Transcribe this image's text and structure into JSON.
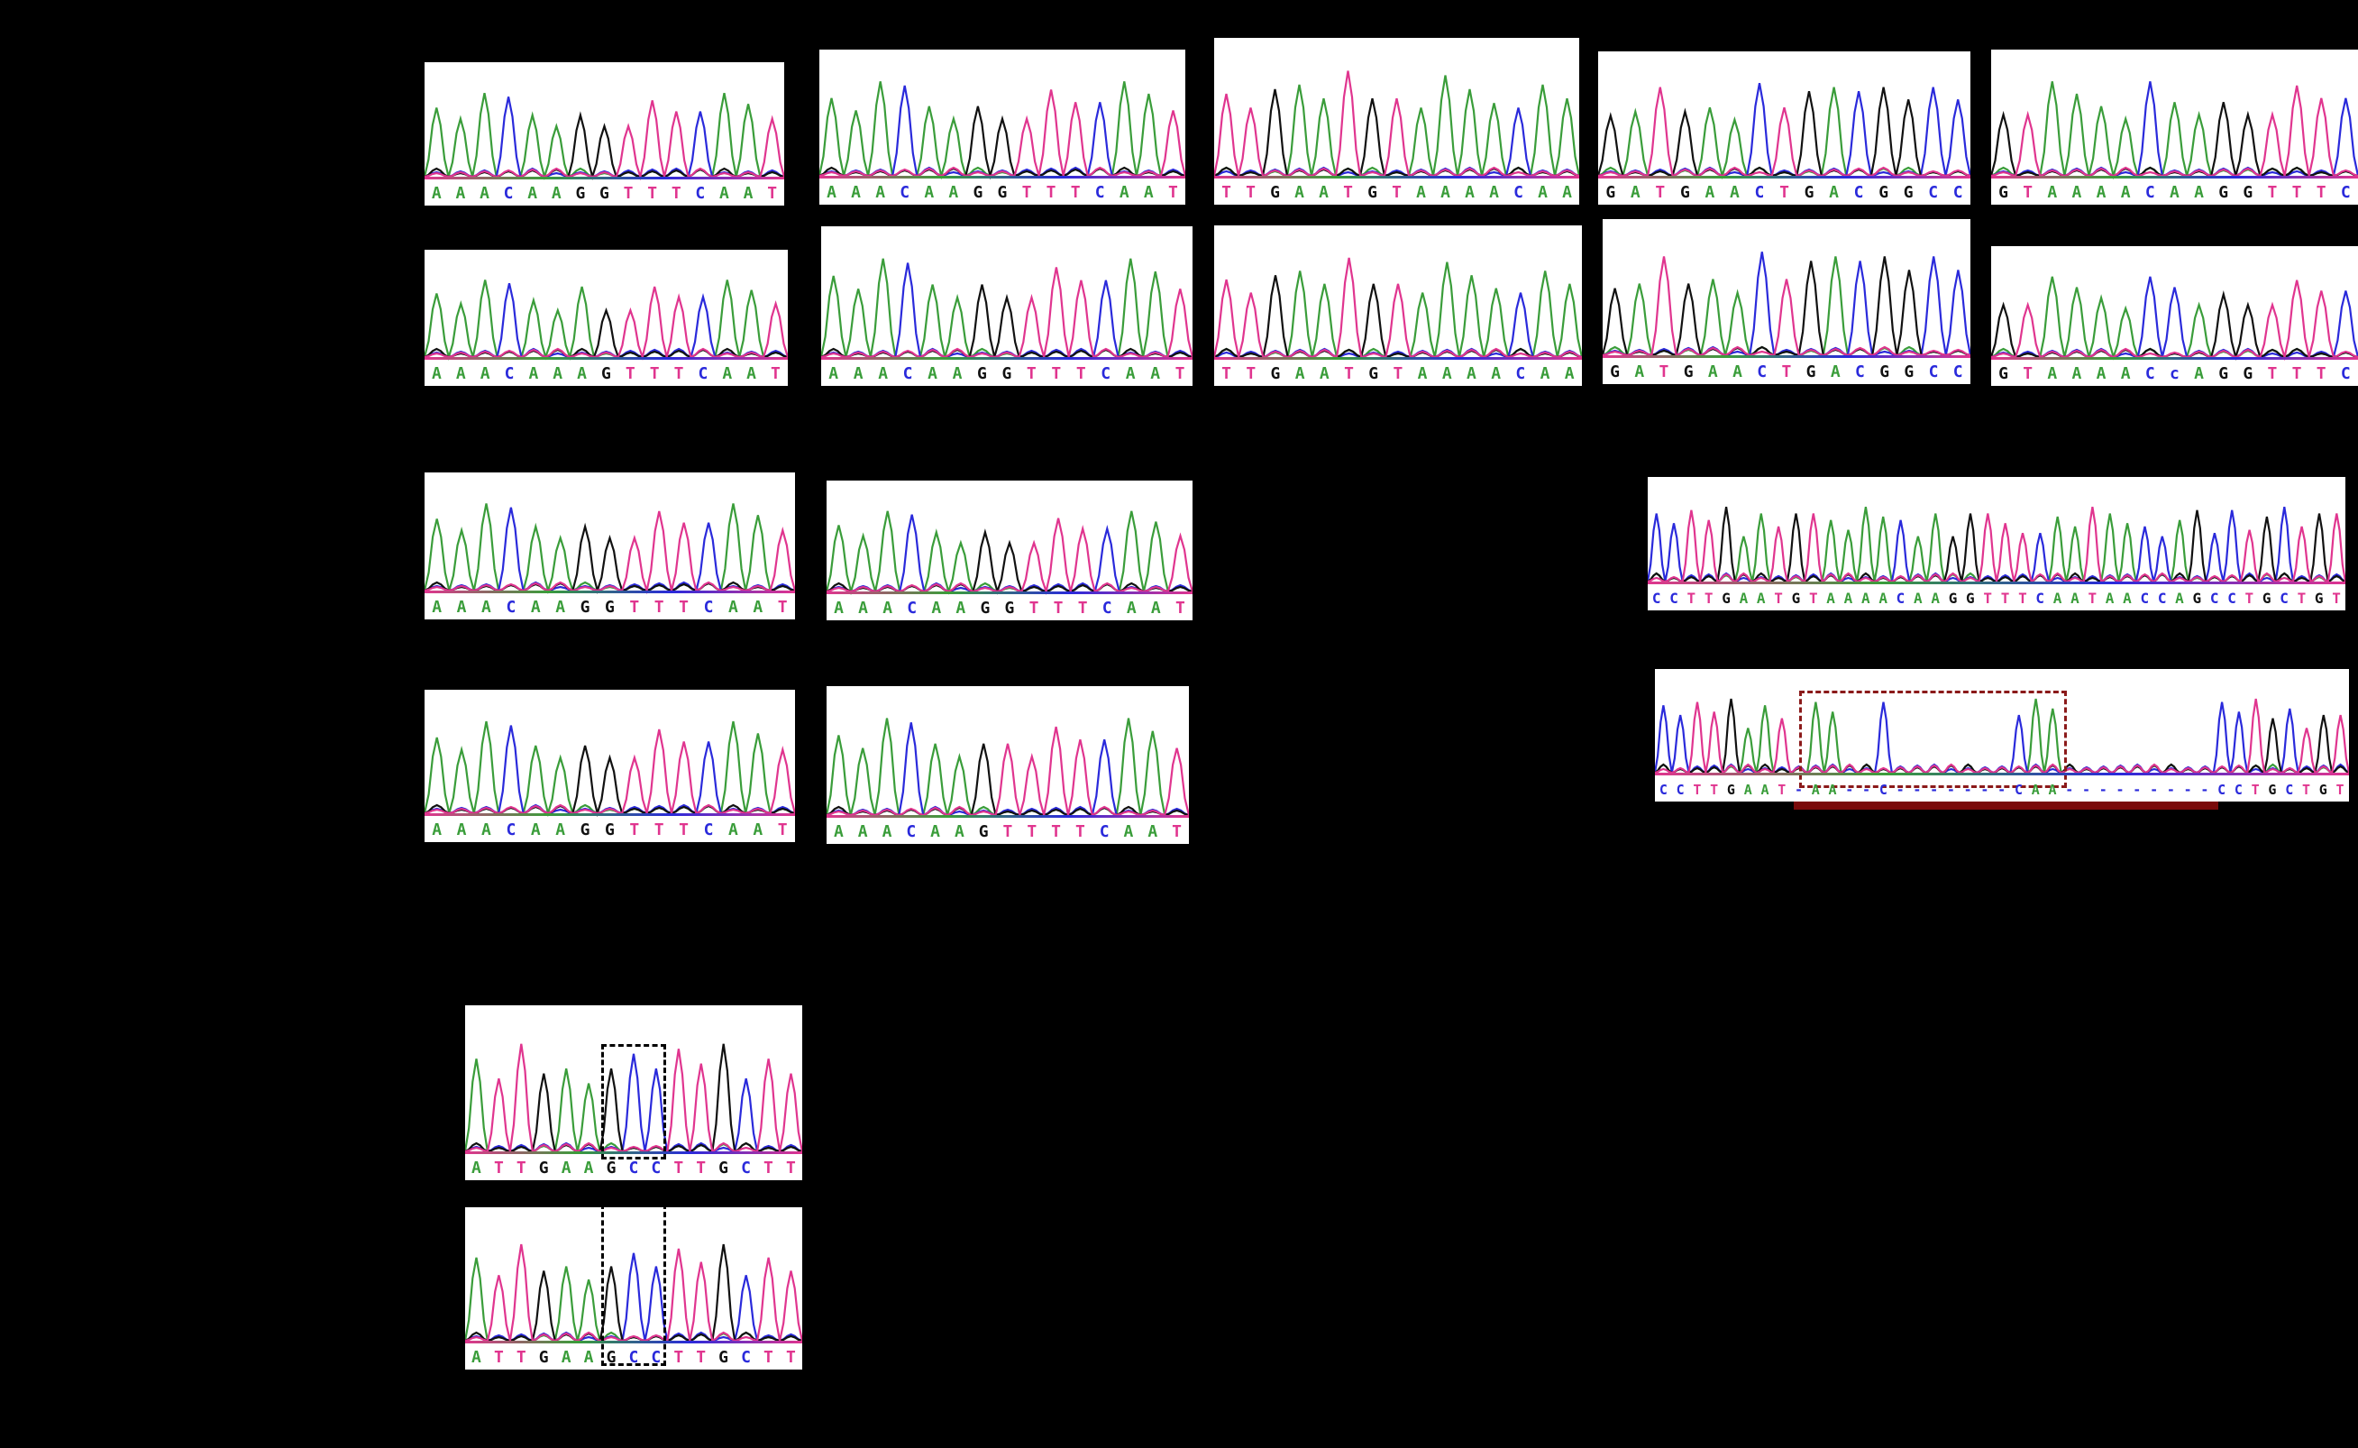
{
  "colors": {
    "A": "#3a9d3a",
    "C": "#2a2adb",
    "G": "#111111",
    "T": "#e0358f",
    "n": "#2a2adb",
    "dash": "#2a2adb",
    "background": "#000000",
    "panel": "#ffffff",
    "highlight_box": "#8b1a1a",
    "highlight_bar": "#7a0a0a"
  },
  "panels": [
    {
      "id": "row1-col1",
      "seq": "AAACAAGGTTTCAAT"
    },
    {
      "id": "row1-col2",
      "seq": "AAACAAGGTTTCAAT"
    },
    {
      "id": "row1-col3",
      "seq": "TTGAATGTAAAACAA"
    },
    {
      "id": "row1-col4",
      "seq": "GATGAACTGACGGCC"
    },
    {
      "id": "row1-col5",
      "seq": "GTAAAACAAGGTTTC"
    },
    {
      "id": "row2-col1",
      "seq": "AAACAAAGTTTCAAT"
    },
    {
      "id": "row2-col2",
      "seq": "AAACAAGGTTTCAAT"
    },
    {
      "id": "row2-col3",
      "seq": "TTGAATGTAAAACAA"
    },
    {
      "id": "row2-col4",
      "seq": "GATGAACTGACGGCC"
    },
    {
      "id": "row2-col5",
      "seq": "GTAAAACcAGGTTTC"
    },
    {
      "id": "row3-col1",
      "seq": "AAACAAGGTTTCAAT"
    },
    {
      "id": "row3-col2",
      "seq": "AAACAAGGTTTCAAT"
    },
    {
      "id": "row4-col1",
      "seq": "AAACAAGGTTTCAAT"
    },
    {
      "id": "row4-col2",
      "seq": "AAACAAGTTTTCAAT"
    },
    {
      "id": "wide-top",
      "seq": "CCTTGAATGTAAAACAAGGTTTCAATAACCAGCCTGCTGT"
    },
    {
      "id": "wide-bottom",
      "seq": "CCTTGAAT-AA--C-------CAA---------CCTGCTGT"
    },
    {
      "id": "bottom-1",
      "seq": "ATTGAAGCCTTGCTT"
    },
    {
      "id": "bottom-2",
      "seq": "ATTGAAGCCTTGCTT"
    }
  ]
}
